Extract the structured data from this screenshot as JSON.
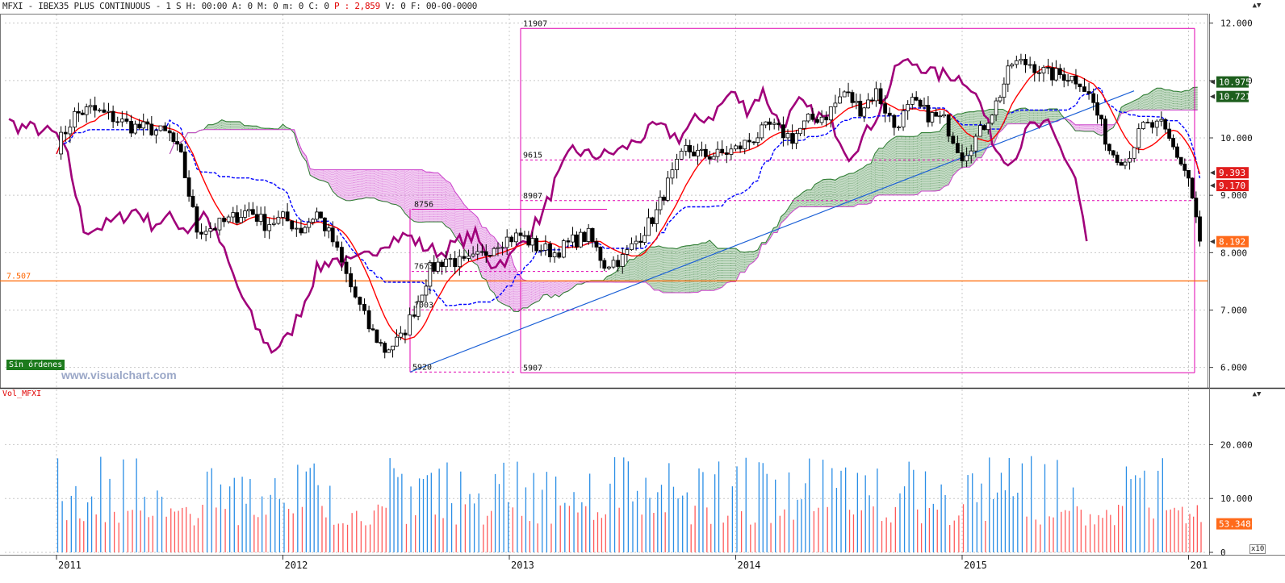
{
  "header": {
    "ticker": "MFXI",
    "sep1": "-",
    "instrument": "IBEX35 PLUS CONTINUOUS",
    "sep2": "-",
    "info_a": "1 S H: 00:00 A: 0 M: 0 m: 0 C: 0",
    "p_label": "P :",
    "p_value": "2,859",
    "info_b": "V: 0 F: 00-00-0000"
  },
  "watermark": "www.visualchart.com",
  "orders_badge": "Sin órdenes",
  "volume_title": "Vol_MFXI",
  "multiplier": "x10",
  "colors": {
    "price_up": "#ffffff",
    "price_down": "#000000",
    "ma_red": "#ff0000",
    "kijun_blue": "#0000ff",
    "chikou_purple": "#a0007a",
    "cloud_green": "#2e7d32",
    "cloud_violet": "#cc44cc",
    "fib_magenta": "#e000b0",
    "hline_orange": "#ff6600",
    "trend_blue": "#1a5fd6",
    "vol_blue": "#2a8ee6",
    "vol_red": "#ff5a5a"
  },
  "chart_data": {
    "type": "candlestick",
    "x_ticks": [
      "2011",
      "2012",
      "2013",
      "2014",
      "2015",
      "201"
    ],
    "price_axis": {
      "ticks": [
        "12.000",
        "11.000",
        "10.000",
        "9.000",
        "8.000",
        "7.000",
        "6.000"
      ],
      "range": [
        5700,
        12150
      ]
    },
    "price_markers": [
      {
        "value": 10975,
        "label": "10.975",
        "bg": "#1d5e1d"
      },
      {
        "value": 10721,
        "label": "10.721",
        "bg": "#1d5e1d"
      },
      {
        "value": 9393,
        "label": "9.393",
        "bg": "#e11d1d"
      },
      {
        "value": 9170,
        "label": "9.170",
        "bg": "#e11d1d"
      },
      {
        "value": 8192,
        "label": "8.192",
        "bg": "#ff6a1a"
      }
    ],
    "horizontal_line": {
      "value": 7507,
      "label": "7.507"
    },
    "fib_levels": [
      {
        "label": "11907",
        "value": 11907
      },
      {
        "label": "9615",
        "value": 9615
      },
      {
        "label": "8907",
        "value": 8907
      },
      {
        "label": "8756",
        "value": 8756
      },
      {
        "label": "7673",
        "value": 7673
      },
      {
        "label": "7003",
        "value": 7003
      },
      {
        "label": "5920",
        "value": 5920
      },
      {
        "label": "5907",
        "value": 5907
      }
    ],
    "volume_axis": {
      "ticks": [
        "20.000",
        "10.000",
        "0"
      ],
      "range": [
        0,
        28000
      ],
      "marker": "53.348"
    },
    "price_series": [
      [
        2011.0,
        9850
      ],
      [
        2011.08,
        10400
      ],
      [
        2011.15,
        10500
      ],
      [
        2011.25,
        10350
      ],
      [
        2011.33,
        10200
      ],
      [
        2011.42,
        10150
      ],
      [
        2011.5,
        10050
      ],
      [
        2011.55,
        9650
      ],
      [
        2011.62,
        8400
      ],
      [
        2011.7,
        8450
      ],
      [
        2011.78,
        8600
      ],
      [
        2011.85,
        8750
      ],
      [
        2011.92,
        8500
      ],
      [
        2012.0,
        8600
      ],
      [
        2012.08,
        8400
      ],
      [
        2012.15,
        8700
      ],
      [
        2012.22,
        8200
      ],
      [
        2012.3,
        7400
      ],
      [
        2012.38,
        6700
      ],
      [
        2012.45,
        6300
      ],
      [
        2012.52,
        6500
      ],
      [
        2012.58,
        7000
      ],
      [
        2012.65,
        7700
      ],
      [
        2012.72,
        7900
      ],
      [
        2012.8,
        7800
      ],
      [
        2012.88,
        7950
      ],
      [
        2012.95,
        8200
      ],
      [
        2013.05,
        8300
      ],
      [
        2013.12,
        8100
      ],
      [
        2013.2,
        8000
      ],
      [
        2013.28,
        8200
      ],
      [
        2013.35,
        8300
      ],
      [
        2013.42,
        7800
      ],
      [
        2013.5,
        7900
      ],
      [
        2013.58,
        8300
      ],
      [
        2013.65,
        8700
      ],
      [
        2013.7,
        9200
      ],
      [
        2013.78,
        9800
      ],
      [
        2013.85,
        9700
      ],
      [
        2013.92,
        9700
      ],
      [
        2014.0,
        9800
      ],
      [
        2014.08,
        10000
      ],
      [
        2014.15,
        10200
      ],
      [
        2014.25,
        10000
      ],
      [
        2014.32,
        10300
      ],
      [
        2014.4,
        10400
      ],
      [
        2014.48,
        10800
      ],
      [
        2014.55,
        10500
      ],
      [
        2014.62,
        10800
      ],
      [
        2014.7,
        10200
      ],
      [
        2014.78,
        10600
      ],
      [
        2014.85,
        10400
      ],
      [
        2014.92,
        10300
      ],
      [
        2015.0,
        9700
      ],
      [
        2015.08,
        10100
      ],
      [
        2015.15,
        10600
      ],
      [
        2015.22,
        11300
      ],
      [
        2015.3,
        11300
      ],
      [
        2015.38,
        11100
      ],
      [
        2015.45,
        11100
      ],
      [
        2015.52,
        11000
      ],
      [
        2015.58,
        10600
      ],
      [
        2015.65,
        9800
      ],
      [
        2015.72,
        9600
      ],
      [
        2015.8,
        10200
      ],
      [
        2015.88,
        10200
      ],
      [
        2015.95,
        9700
      ],
      [
        2016.0,
        9300
      ],
      [
        2016.05,
        8200
      ]
    ]
  }
}
